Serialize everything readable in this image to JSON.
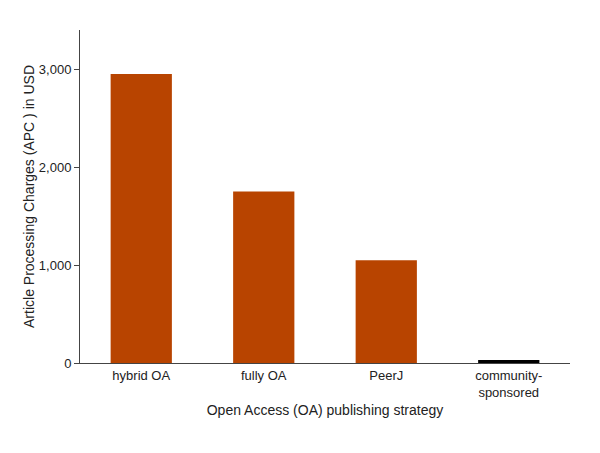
{
  "chart_data": {
    "type": "bar",
    "categories": [
      "hybrid OA",
      "fully OA",
      "PeerJ",
      "community-\nsponsored"
    ],
    "values": [
      2950,
      1750,
      1050,
      30
    ],
    "colors": [
      "#b84400",
      "#b84400",
      "#b84400",
      "#000000"
    ],
    "xlabel": "Open Access (OA) publishing strategy",
    "ylabel": "Article Processing Charges (APC ) in USD",
    "ylim": [
      0,
      3400
    ],
    "yticks": [
      0,
      {
        "value": 1000,
        "label": "1,000"
      },
      {
        "value": 2000,
        "label": "2,000"
      },
      {
        "value": 3000,
        "label": "3,000"
      }
    ],
    "grid": false
  }
}
